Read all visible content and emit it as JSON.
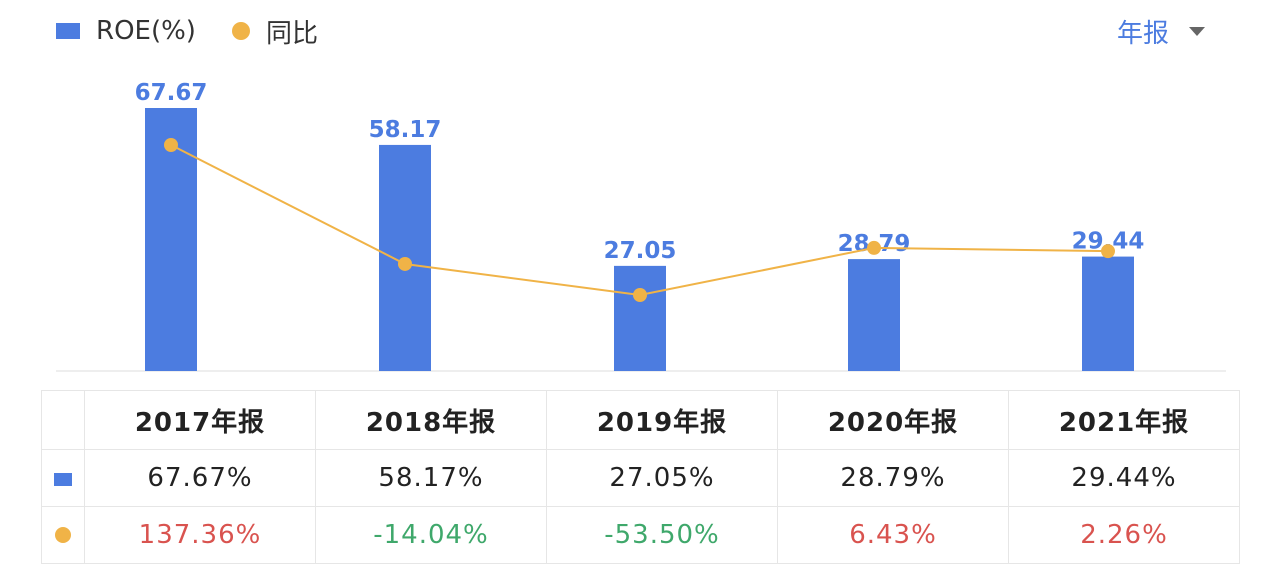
{
  "legend": {
    "roe_label": "ROE(%)",
    "yoy_label": "同比"
  },
  "period_selector": {
    "label": "年报",
    "icon": "dropdown-triangle-icon"
  },
  "colors": {
    "bar": "#4c7ce0",
    "line": "#f0b347",
    "positive": "#d9534f",
    "negative": "#3fa86b",
    "bar_label": "#4c7ce0"
  },
  "chart_data": {
    "type": "bar",
    "categories": [
      "2017年报",
      "2018年报",
      "2019年报",
      "2020年报",
      "2021年报"
    ],
    "series": [
      {
        "name": "ROE(%)",
        "type": "bar",
        "values": [
          67.67,
          58.17,
          27.05,
          28.79,
          29.44
        ]
      },
      {
        "name": "同比",
        "type": "line",
        "values": [
          137.36,
          -14.04,
          -53.5,
          6.43,
          2.26
        ]
      }
    ],
    "bar_labels": [
      "67.67",
      "58.17",
      "27.05",
      "28.79",
      "29.44"
    ],
    "legend_position": "top-left",
    "grid": false
  },
  "table": {
    "columns": [
      "2017年报",
      "2018年报",
      "2019年报",
      "2020年报",
      "2021年报"
    ],
    "roe_row": [
      "67.67%",
      "58.17%",
      "27.05%",
      "28.79%",
      "29.44%"
    ],
    "yoy_row": [
      "137.36%",
      "-14.04%",
      "-53.50%",
      "6.43%",
      "2.26%"
    ]
  }
}
